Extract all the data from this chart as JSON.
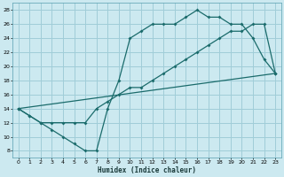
{
  "xlabel": "Humidex (Indice chaleur)",
  "bg_color": "#cce9f0",
  "grid_color": "#a0cdd8",
  "line_color": "#1a6b6b",
  "xlim": [
    -0.5,
    23.5
  ],
  "ylim": [
    7,
    29
  ],
  "yticks": [
    8,
    10,
    12,
    14,
    16,
    18,
    20,
    22,
    24,
    26,
    28
  ],
  "xticks": [
    0,
    1,
    2,
    3,
    4,
    5,
    6,
    7,
    8,
    9,
    10,
    11,
    12,
    13,
    14,
    15,
    16,
    17,
    18,
    19,
    20,
    21,
    22,
    23
  ],
  "line1_x": [
    0,
    1,
    2,
    3,
    4,
    5,
    6,
    7,
    8,
    9,
    10,
    11,
    12,
    13,
    14,
    15,
    16,
    17,
    18,
    19,
    20,
    21,
    22,
    23
  ],
  "line1_y": [
    14,
    13,
    12,
    11,
    10,
    9,
    8,
    8,
    14,
    18,
    24,
    25,
    26,
    26,
    26,
    27,
    28,
    27,
    27,
    26,
    26,
    24,
    21,
    19
  ],
  "line2_x": [
    0,
    1,
    2,
    3,
    4,
    5,
    6,
    7,
    8,
    9,
    10,
    11,
    12,
    13,
    14,
    15,
    16,
    17,
    18,
    19,
    20,
    21,
    22,
    23
  ],
  "line2_y": [
    14,
    13,
    12,
    12,
    12,
    12,
    12,
    14,
    15,
    16,
    17,
    17,
    18,
    19,
    20,
    21,
    22,
    23,
    24,
    25,
    25,
    26,
    26,
    19
  ],
  "line3_x": [
    0,
    23
  ],
  "line3_y": [
    14,
    19
  ]
}
